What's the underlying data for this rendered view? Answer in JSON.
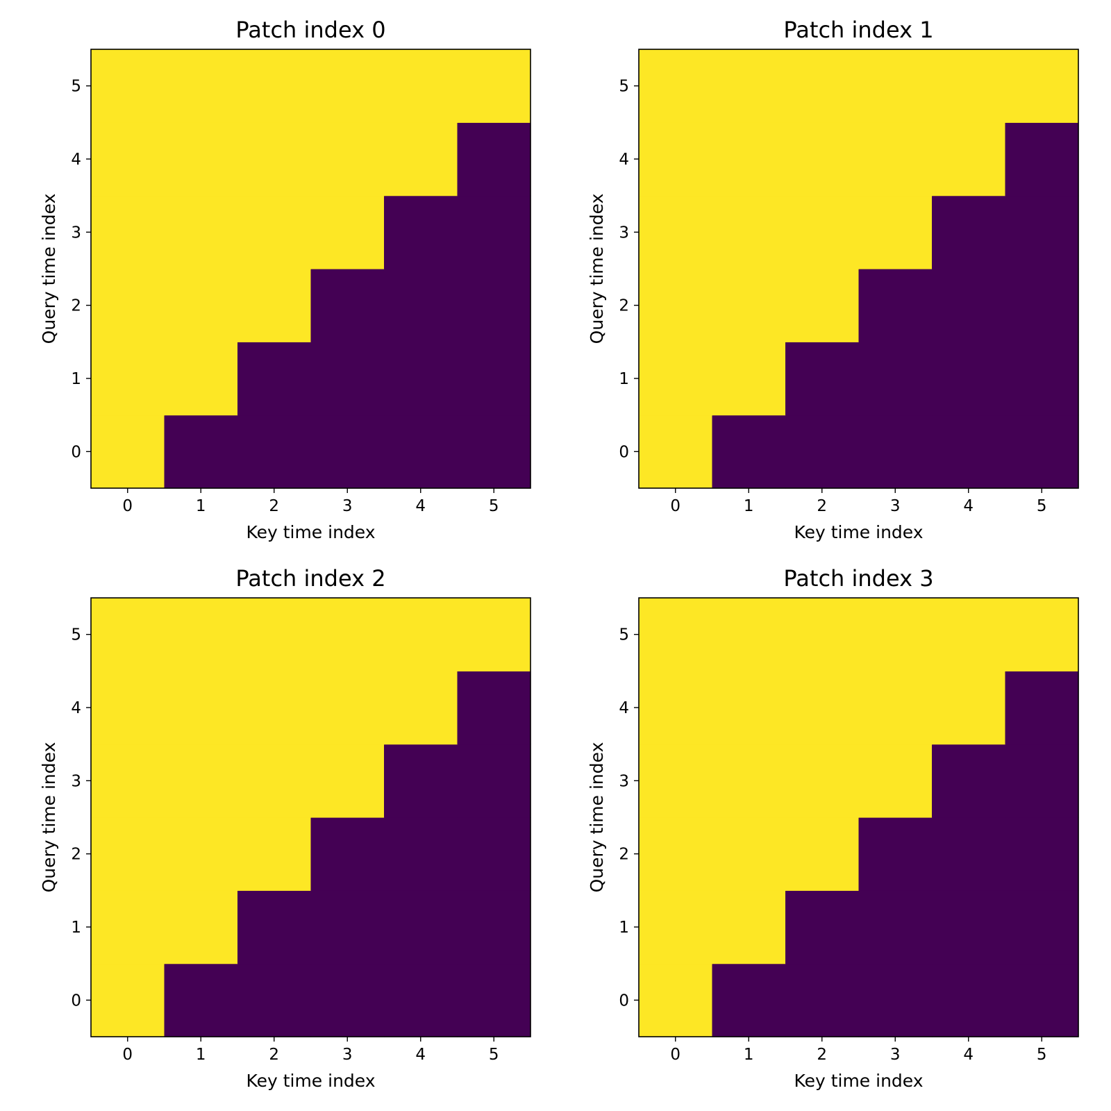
{
  "colors": {
    "one": "#fde725",
    "zero": "#440154"
  },
  "chart_data": [
    {
      "type": "heatmap",
      "title": "Patch index 0",
      "xlabel": "Key time index",
      "ylabel": "Query time index",
      "x": [
        0,
        1,
        2,
        3,
        4,
        5
      ],
      "y": [
        0,
        1,
        2,
        3,
        4,
        5
      ],
      "xlim": [
        -0.5,
        5.5
      ],
      "ylim": [
        -0.5,
        5.5
      ],
      "values": [
        [
          1,
          0,
          0,
          0,
          0,
          0
        ],
        [
          1,
          1,
          0,
          0,
          0,
          0
        ],
        [
          1,
          1,
          1,
          0,
          0,
          0
        ],
        [
          1,
          1,
          1,
          1,
          0,
          0
        ],
        [
          1,
          1,
          1,
          1,
          1,
          0
        ],
        [
          1,
          1,
          1,
          1,
          1,
          1
        ]
      ]
    },
    {
      "type": "heatmap",
      "title": "Patch index 1",
      "xlabel": "Key time index",
      "ylabel": "Query time index",
      "x": [
        0,
        1,
        2,
        3,
        4,
        5
      ],
      "y": [
        0,
        1,
        2,
        3,
        4,
        5
      ],
      "xlim": [
        -0.5,
        5.5
      ],
      "ylim": [
        -0.5,
        5.5
      ],
      "values": [
        [
          1,
          0,
          0,
          0,
          0,
          0
        ],
        [
          1,
          1,
          0,
          0,
          0,
          0
        ],
        [
          1,
          1,
          1,
          0,
          0,
          0
        ],
        [
          1,
          1,
          1,
          1,
          0,
          0
        ],
        [
          1,
          1,
          1,
          1,
          1,
          0
        ],
        [
          1,
          1,
          1,
          1,
          1,
          1
        ]
      ]
    },
    {
      "type": "heatmap",
      "title": "Patch index 2",
      "xlabel": "Key time index",
      "ylabel": "Query time index",
      "x": [
        0,
        1,
        2,
        3,
        4,
        5
      ],
      "y": [
        0,
        1,
        2,
        3,
        4,
        5
      ],
      "xlim": [
        -0.5,
        5.5
      ],
      "ylim": [
        -0.5,
        5.5
      ],
      "values": [
        [
          1,
          0,
          0,
          0,
          0,
          0
        ],
        [
          1,
          1,
          0,
          0,
          0,
          0
        ],
        [
          1,
          1,
          1,
          0,
          0,
          0
        ],
        [
          1,
          1,
          1,
          1,
          0,
          0
        ],
        [
          1,
          1,
          1,
          1,
          1,
          0
        ],
        [
          1,
          1,
          1,
          1,
          1,
          1
        ]
      ]
    },
    {
      "type": "heatmap",
      "title": "Patch index 3",
      "xlabel": "Key time index",
      "ylabel": "Query time index",
      "x": [
        0,
        1,
        2,
        3,
        4,
        5
      ],
      "y": [
        0,
        1,
        2,
        3,
        4,
        5
      ],
      "xlim": [
        -0.5,
        5.5
      ],
      "ylim": [
        -0.5,
        5.5
      ],
      "values": [
        [
          1,
          0,
          0,
          0,
          0,
          0
        ],
        [
          1,
          1,
          0,
          0,
          0,
          0
        ],
        [
          1,
          1,
          1,
          0,
          0,
          0
        ],
        [
          1,
          1,
          1,
          1,
          0,
          0
        ],
        [
          1,
          1,
          1,
          1,
          1,
          0
        ],
        [
          1,
          1,
          1,
          1,
          1,
          1
        ]
      ]
    }
  ]
}
